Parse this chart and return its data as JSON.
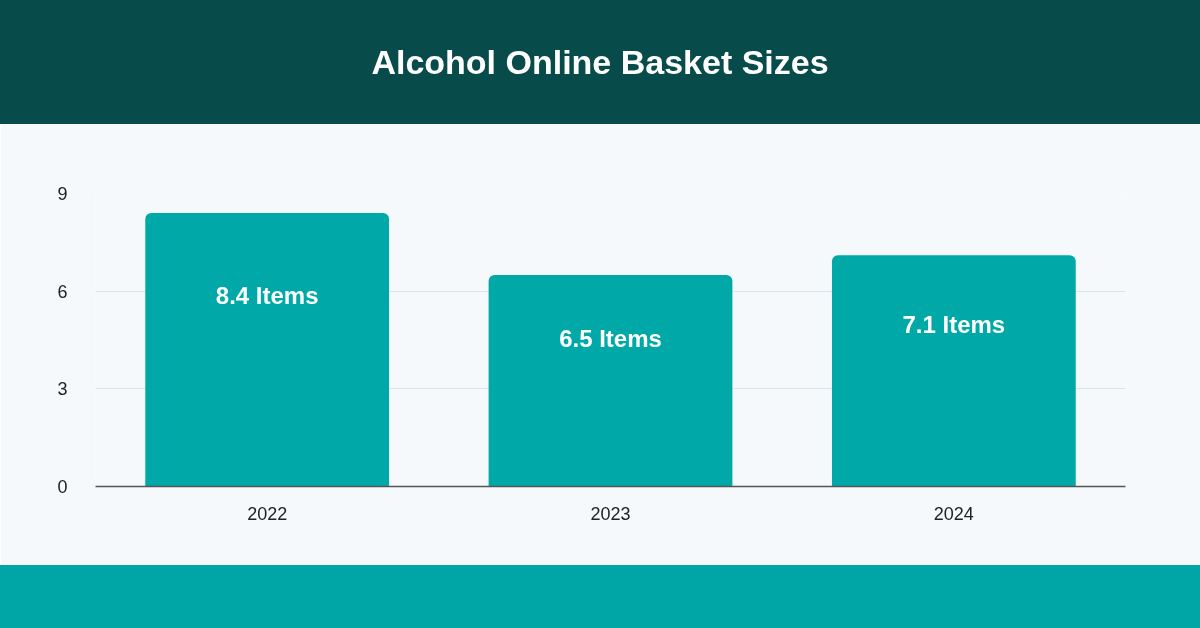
{
  "chart_data": {
    "type": "bar",
    "title": "Alcohol Online Basket Sizes",
    "categories": [
      "2022",
      "2023",
      "2024"
    ],
    "values": [
      8.4,
      6.5,
      7.1
    ],
    "color": "#00a8a8",
    "value_labels": [
      "8.4 Items",
      "6.5 Items",
      "7.1 Items"
    ],
    "ylim": [
      0,
      9
    ],
    "yticks": [
      0,
      3,
      6,
      9
    ],
    "grid": "y"
  }
}
